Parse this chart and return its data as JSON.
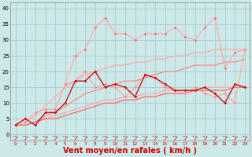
{
  "background_color": "#cce8e8",
  "grid_color": "#aacccc",
  "xlabel": "Vent moyen/en rafales ( km/h )",
  "xlabel_color": "#cc0000",
  "xlabel_fontsize": 7,
  "xticks": [
    0,
    1,
    2,
    3,
    4,
    5,
    6,
    7,
    8,
    9,
    10,
    11,
    12,
    13,
    14,
    15,
    16,
    17,
    18,
    19,
    20,
    21,
    22,
    23
  ],
  "yticks": [
    0,
    5,
    10,
    15,
    20,
    25,
    30,
    35,
    40
  ],
  "ylim": [
    -2,
    42
  ],
  "xlim": [
    -0.5,
    23.5
  ],
  "arrow_color": "#cc0000",
  "line1_x": [
    5,
    6,
    7,
    8,
    9,
    10,
    11,
    12,
    13,
    14,
    15,
    16,
    17,
    18,
    19,
    20,
    21,
    22,
    23
  ],
  "line1_y": [
    16,
    25,
    27,
    34,
    37,
    32,
    32,
    30,
    32,
    32,
    32,
    34,
    31,
    30,
    34,
    37,
    21,
    26,
    27
  ],
  "line1_color": "#ffaaaa",
  "line2_x": [
    0,
    1,
    2,
    3,
    4,
    5,
    6,
    7,
    8,
    9,
    10,
    11,
    12,
    13,
    14,
    15,
    16,
    17,
    18,
    19,
    20,
    21,
    22,
    23
  ],
  "line2_y": [
    3,
    4,
    7,
    8,
    8,
    16,
    17,
    20,
    15,
    16,
    15,
    12,
    15,
    19,
    18,
    15,
    14,
    13,
    15,
    13,
    12,
    13,
    10,
    27
  ],
  "line2_color": "#ffaaaa",
  "smooth_upper_x": [
    0,
    1,
    2,
    3,
    4,
    5,
    6,
    7,
    8,
    9,
    10,
    11,
    12,
    13,
    14,
    15,
    16,
    17,
    18,
    19,
    20,
    21,
    22,
    23
  ],
  "smooth_upper_y": [
    3,
    4,
    6,
    9,
    12,
    15,
    17,
    19,
    20,
    21,
    22,
    22,
    23,
    23,
    24,
    24,
    25,
    25,
    26,
    26,
    27,
    27,
    27,
    27
  ],
  "smooth_upper_color": "#ffaaaa",
  "smooth_lower_x": [
    0,
    1,
    2,
    3,
    4,
    5,
    6,
    7,
    8,
    9,
    10,
    11,
    12,
    13,
    14,
    15,
    16,
    17,
    18,
    19,
    20,
    21,
    22,
    23
  ],
  "smooth_lower_y": [
    3,
    3,
    4,
    5,
    6,
    7,
    8,
    9,
    10,
    11,
    11,
    12,
    12,
    13,
    13,
    14,
    14,
    14,
    14,
    15,
    15,
    15,
    15,
    15
  ],
  "smooth_lower_color": "#ffaaaa",
  "mid1_x": [
    0,
    1,
    2,
    3,
    4,
    5,
    6,
    7,
    8,
    9,
    10,
    11,
    12,
    13,
    14,
    15,
    16,
    17,
    18,
    19,
    20,
    21,
    22,
    23
  ],
  "mid1_y": [
    3,
    3,
    4,
    6,
    7,
    9,
    11,
    13,
    14,
    15,
    16,
    17,
    17,
    18,
    19,
    20,
    20,
    21,
    22,
    22,
    22,
    23,
    23,
    24
  ],
  "mid1_color": "#ff8888",
  "mid2_x": [
    0,
    1,
    2,
    3,
    4,
    5,
    6,
    7,
    8,
    9,
    10,
    11,
    12,
    13,
    14,
    15,
    16,
    17,
    18,
    19,
    20,
    21,
    22,
    23
  ],
  "mid2_y": [
    3,
    3,
    4,
    5,
    5,
    6,
    7,
    8,
    9,
    10,
    10,
    11,
    11,
    12,
    12,
    13,
    13,
    13,
    14,
    14,
    14,
    14,
    15,
    15
  ],
  "mid2_color": "#ff6666",
  "dark_x": [
    0,
    1,
    2,
    3,
    4,
    5,
    6,
    7,
    8,
    9,
    10,
    11,
    12,
    13,
    14,
    15,
    16,
    17,
    18,
    19,
    20,
    21,
    22,
    23
  ],
  "dark_y": [
    3,
    5,
    3,
    7,
    7,
    10,
    17,
    17,
    20,
    15,
    16,
    15,
    12,
    19,
    18,
    16,
    14,
    14,
    14,
    15,
    13,
    10,
    16,
    15
  ],
  "dark_color": "#cc0000"
}
